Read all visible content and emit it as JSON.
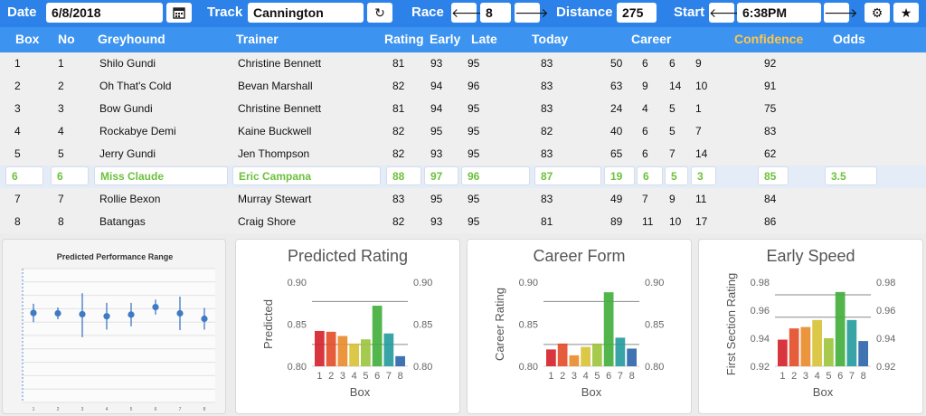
{
  "toolbar": {
    "date_label": "Date",
    "date_value": "6/8/2018",
    "track_label": "Track",
    "track_value": "Cannington",
    "race_label": "Race",
    "race_value": "8",
    "distance_label": "Distance",
    "distance_value": "275",
    "start_label": "Start",
    "start_value": "6:38PM",
    "icons": [
      "calendar-icon",
      "refresh-icon",
      "arrow-left-icon",
      "arrow-right-icon",
      "gear-icon",
      "star-icon"
    ]
  },
  "columns": {
    "box": "Box",
    "no": "No",
    "greyhound": "Greyhound",
    "trainer": "Trainer",
    "rating": "Rating",
    "early": "Early",
    "late": "Late",
    "today": "Today",
    "career": "Career",
    "confidence": "Confidence",
    "odds": "Odds"
  },
  "colors": {
    "confidence_header": "#ffc64a",
    "selected_text": "#6cc13c",
    "header_bg": "#3d93f0"
  },
  "rows": [
    {
      "box": "1",
      "no": "1",
      "greyhound": "Shilo Gundi",
      "trainer": "Christine Bennett",
      "rating": "81",
      "early": "93",
      "late": "95",
      "today": "83",
      "c1": "50",
      "c2": "6",
      "c3": "6",
      "c4": "9",
      "confidence": "92",
      "odds": ""
    },
    {
      "box": "2",
      "no": "2",
      "greyhound": "Oh That's Cold",
      "trainer": "Bevan Marshall",
      "rating": "82",
      "early": "94",
      "late": "96",
      "today": "83",
      "c1": "63",
      "c2": "9",
      "c3": "14",
      "c4": "10",
      "confidence": "91",
      "odds": ""
    },
    {
      "box": "3",
      "no": "3",
      "greyhound": "Bow Gundi",
      "trainer": "Christine Bennett",
      "rating": "81",
      "early": "94",
      "late": "95",
      "today": "83",
      "c1": "24",
      "c2": "4",
      "c3": "5",
      "c4": "1",
      "confidence": "75",
      "odds": ""
    },
    {
      "box": "4",
      "no": "4",
      "greyhound": "Rockabye Demi",
      "trainer": "Kaine Buckwell",
      "rating": "82",
      "early": "95",
      "late": "95",
      "today": "82",
      "c1": "40",
      "c2": "6",
      "c3": "5",
      "c4": "7",
      "confidence": "83",
      "odds": ""
    },
    {
      "box": "5",
      "no": "5",
      "greyhound": "Jerry Gundi",
      "trainer": "Jen Thompson",
      "rating": "82",
      "early": "93",
      "late": "95",
      "today": "83",
      "c1": "65",
      "c2": "6",
      "c3": "7",
      "c4": "14",
      "confidence": "62",
      "odds": ""
    },
    {
      "box": "6",
      "no": "6",
      "greyhound": "Miss Claude",
      "trainer": "Eric Campana",
      "rating": "88",
      "early": "97",
      "late": "96",
      "today": "87",
      "c1": "19",
      "c2": "6",
      "c3": "5",
      "c4": "3",
      "confidence": "85",
      "odds": "3.5"
    },
    {
      "box": "7",
      "no": "7",
      "greyhound": "Rollie Bexon",
      "trainer": "Murray Stewart",
      "rating": "83",
      "early": "95",
      "late": "95",
      "today": "83",
      "c1": "49",
      "c2": "7",
      "c3": "9",
      "c4": "11",
      "confidence": "84",
      "odds": ""
    },
    {
      "box": "8",
      "no": "8",
      "greyhound": "Batangas",
      "trainer": "Craig Shore",
      "rating": "82",
      "early": "93",
      "late": "95",
      "today": "81",
      "c1": "89",
      "c2": "11",
      "c3": "10",
      "c4": "17",
      "confidence": "86",
      "odds": ""
    }
  ],
  "selected_row": 5,
  "chart_data": [
    {
      "type": "scatter",
      "title": "Predicted Performance Range",
      "x": [
        1,
        2,
        3,
        4,
        5,
        6,
        7,
        8
      ],
      "y": [
        0.54,
        0.53,
        0.51,
        0.46,
        0.5,
        0.68,
        0.53,
        0.4
      ],
      "err_low": [
        0.22,
        0.14,
        0.55,
        0.32,
        0.28,
        0.18,
        0.4,
        0.26
      ],
      "err_high": [
        0.22,
        0.14,
        0.5,
        0.32,
        0.28,
        0.18,
        0.4,
        0.26
      ],
      "ylim": [
        -1.6,
        1.6
      ],
      "xlabel": "",
      "ylabel": "",
      "grid": true
    },
    {
      "type": "bar",
      "title": "Predicted Rating",
      "categories": [
        "1",
        "2",
        "3",
        "4",
        "5",
        "6",
        "7",
        "8"
      ],
      "values": [
        0.842,
        0.841,
        0.836,
        0.827,
        0.832,
        0.872,
        0.839,
        0.812
      ],
      "xlabel": "Box",
      "ylabel": "Predicted",
      "ylim": [
        0.8,
        0.9
      ],
      "yticks": [
        "0.80",
        "0.85",
        "0.90"
      ],
      "ref_lines": [
        0.877,
        0.826
      ]
    },
    {
      "type": "bar",
      "title": "Career Form",
      "categories": [
        "1",
        "2",
        "3",
        "4",
        "5",
        "6",
        "7",
        "8"
      ],
      "values": [
        0.82,
        0.827,
        0.813,
        0.823,
        0.827,
        0.888,
        0.834,
        0.821
      ],
      "xlabel": "Box",
      "ylabel": "Career Rating",
      "ylim": [
        0.8,
        0.9
      ],
      "yticks": [
        "0.80",
        "0.85",
        "0.90"
      ],
      "ref_lines": [
        0.877,
        0.826
      ]
    },
    {
      "type": "bar",
      "title": "Early Speed",
      "categories": [
        "1",
        "2",
        "3",
        "4",
        "5",
        "6",
        "7",
        "8"
      ],
      "values": [
        0.939,
        0.947,
        0.948,
        0.953,
        0.94,
        0.973,
        0.953,
        0.938
      ],
      "xlabel": "Box",
      "ylabel": "First Section Rating",
      "ylim": [
        0.92,
        0.98
      ],
      "yticks": [
        "0.92",
        "0.94",
        "0.96",
        "0.98"
      ],
      "ref_lines": [
        0.971,
        0.955
      ]
    }
  ],
  "bar_colors": [
    "#d41f2a",
    "#e24b26",
    "#e98a2a",
    "#d8c234",
    "#9bc43a",
    "#3fae3a",
    "#239a9c",
    "#2a64a8"
  ]
}
